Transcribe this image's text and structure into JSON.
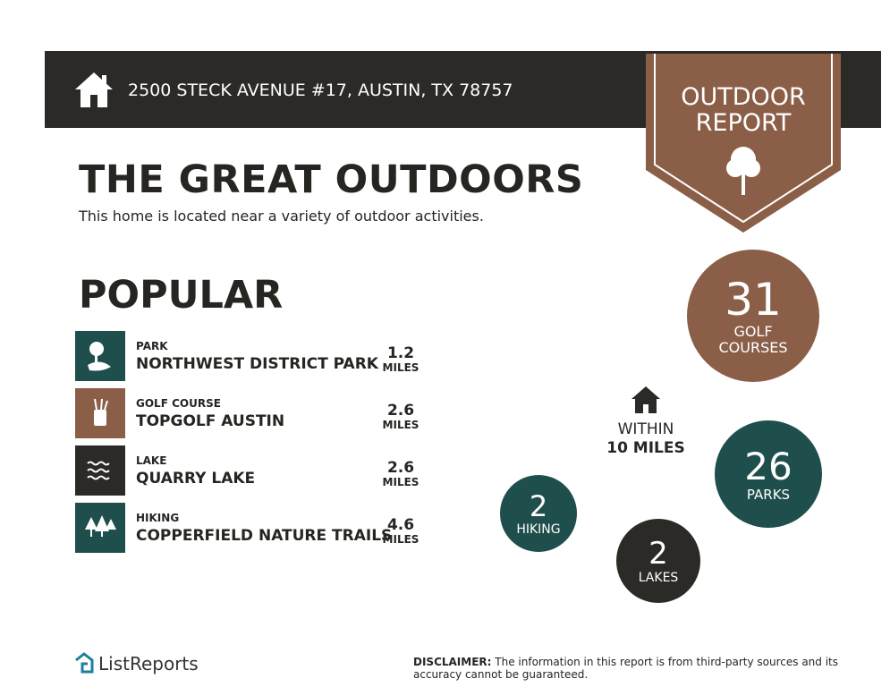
{
  "header": {
    "address": "2500 STECK AVENUE #17, AUSTIN, TX 78757"
  },
  "badge": {
    "line1": "OUTDOOR",
    "line2": "REPORT"
  },
  "title": "THE GREAT OUTDOORS",
  "subtitle": "This home is located near a variety of outdoor activities.",
  "section": "POPULAR",
  "items": [
    {
      "category": "PARK",
      "name": "NORTHWEST DISTRICT PARK",
      "distance": "1.2",
      "unit": "MILES"
    },
    {
      "category": "GOLF COURSE",
      "name": "TOPGOLF AUSTIN",
      "distance": "2.6",
      "unit": "MILES"
    },
    {
      "category": "LAKE",
      "name": "QUARRY LAKE",
      "distance": "2.6",
      "unit": "MILES"
    },
    {
      "category": "HIKING",
      "name": "COPPERFIELD NATURE TRAILS",
      "distance": "4.6",
      "unit": "MILES"
    }
  ],
  "within": {
    "line1": "WITHIN",
    "line2": "10 MILES"
  },
  "stats": [
    {
      "number": "31",
      "label": "GOLF COURSES"
    },
    {
      "number": "26",
      "label": "PARKS"
    },
    {
      "number": "2",
      "label": "HIKING"
    },
    {
      "number": "2",
      "label": "LAKES"
    }
  ],
  "footer": {
    "logo": "ListReports",
    "disclaimer_bold": "DISCLAIMER:",
    "disclaimer": "The information in this report is from third-party sources and its accuracy cannot be guaranteed."
  }
}
